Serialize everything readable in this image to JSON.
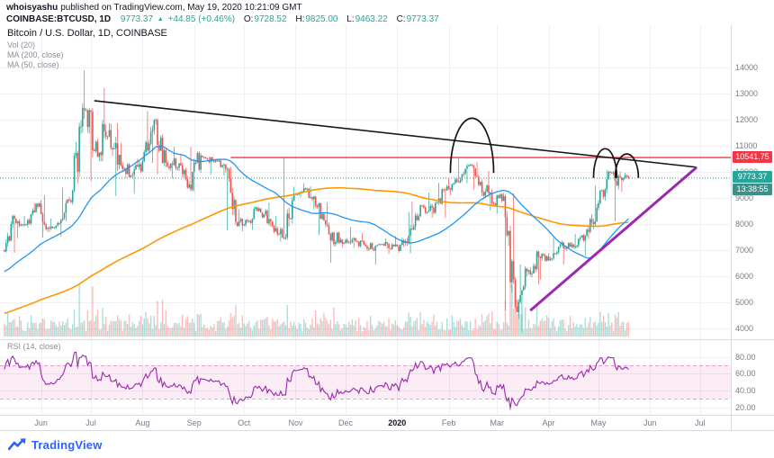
{
  "header": {
    "author": "whoisyashu",
    "published": "published on TradingView.com, May 19, 2020 10:21:09 GMT",
    "symbol": "COINBASE:BTCUSD, 1D",
    "price": "9773.37",
    "change_arrow": "▲",
    "change": "+44.85 (+0.46%)",
    "o_label": "O:",
    "o": "9728.52",
    "h_label": "H:",
    "h": "9825.00",
    "l_label": "L:",
    "l": "9463.22",
    "c_label": "C:",
    "c": "9773.37"
  },
  "legend": {
    "title": "Bitcoin / U.S. Dollar, 1D, COINBASE",
    "vol": "Vol (20)",
    "ma200": "MA (200, close)",
    "ma50": "MA (50, close)"
  },
  "rsi_legend": {
    "label": "RSI (14, close)"
  },
  "axis": {
    "price_values": [
      14000,
      13000,
      12000,
      11000,
      10000,
      9000,
      8000,
      7000,
      6000,
      5000,
      4000
    ],
    "rsi_ticks": [
      {
        "label": "80.00",
        "value": 80
      },
      {
        "label": "60.00",
        "value": 60
      },
      {
        "label": "40.00",
        "value": 40
      },
      {
        "label": "20.00",
        "value": 20
      }
    ],
    "red_label": "10541.75",
    "last_label": "9773.37",
    "countdown": "13:38:55",
    "months": [
      {
        "label": "Jun",
        "day": 22
      },
      {
        "label": "Jul",
        "day": 52
      },
      {
        "label": "Aug",
        "day": 83
      },
      {
        "label": "Sep",
        "day": 114
      },
      {
        "label": "Oct",
        "day": 144
      },
      {
        "label": "Nov",
        "day": 175
      },
      {
        "label": "Dec",
        "day": 205
      },
      {
        "label": "2020",
        "day": 236,
        "bold": true
      },
      {
        "label": "Feb",
        "day": 267
      },
      {
        "label": "Mar",
        "day": 296
      },
      {
        "label": "Apr",
        "day": 327
      },
      {
        "label": "May",
        "day": 357
      },
      {
        "label": "Jun",
        "day": 388
      },
      {
        "label": "Jul",
        "day": 418
      }
    ]
  },
  "footer": {
    "brand": "TradingView"
  },
  "colors": {
    "up": "#26a69a",
    "down": "#ef5350",
    "vol_up": "rgba(38,166,154,0.38)",
    "vol_down": "rgba(239,83,80,0.38)",
    "ma50": "#2196f3",
    "ma200": "#ff9800",
    "red_line": "#f23645",
    "trend_black": "#151515",
    "trend_purple": "#9c27b0",
    "annotation": "#151515",
    "rsi": "#9c27b0",
    "band_fill": "rgba(211,66,156,0.10)",
    "band_edge": "rgba(211,66,156,0.50)",
    "grid": "#eef0f4",
    "separator": "#d9dbe0",
    "axis_text": "#787b86",
    "last_box": "#26a69a",
    "countdown_box": "#3d8f87",
    "brand_blue": "#2962ff"
  },
  "chart_data": {
    "type": "candlestick",
    "symbol": "COINBASE:BTCUSD",
    "interval": "1D",
    "title": "Bitcoin / U.S. Dollar, 1D, COINBASE",
    "start_date": "2019-05-10",
    "total_days": 437,
    "plotted_days": 376,
    "ylim": [
      3650,
      15200
    ],
    "open_start": 7000,
    "weekly_hlc": [
      [
        8350,
        6900,
        8200
      ],
      [
        8300,
        7450,
        7980
      ],
      [
        8800,
        7850,
        8660
      ],
      [
        9090,
        7480,
        7820
      ],
      [
        8200,
        7520,
        8150
      ],
      [
        9390,
        8100,
        9270
      ],
      [
        13880,
        9210,
        12360
      ],
      [
        12440,
        9640,
        11150
      ],
      [
        13200,
        10400,
        11350
      ],
      [
        11850,
        9070,
        10650
      ],
      [
        11100,
        9750,
        9850
      ],
      [
        10500,
        9150,
        10400
      ],
      [
        12320,
        10330,
        11980
      ],
      [
        12050,
        9900,
        10350
      ],
      [
        10950,
        9750,
        10150
      ],
      [
        10650,
        9350,
        9510
      ],
      [
        10950,
        9250,
        10620
      ],
      [
        10580,
        9880,
        10410
      ],
      [
        10450,
        9850,
        10280
      ],
      [
        10180,
        7750,
        8060
      ],
      [
        8540,
        7710,
        8090
      ],
      [
        8660,
        7780,
        8590
      ],
      [
        8820,
        7890,
        8100
      ],
      [
        8300,
        7330,
        7470
      ],
      [
        10540,
        7390,
        9150
      ],
      [
        9560,
        9010,
        9320
      ],
      [
        9440,
        8550,
        8650
      ],
      [
        8820,
        7570,
        7600
      ],
      [
        7700,
        6515,
        7400
      ],
      [
        7880,
        7090,
        7400
      ],
      [
        7650,
        7080,
        7210
      ],
      [
        7290,
        6435,
        7150
      ],
      [
        7440,
        7040,
        7250
      ],
      [
        7530,
        6850,
        6960
      ],
      [
        8460,
        6880,
        7820
      ],
      [
        8850,
        7750,
        8700
      ],
      [
        9190,
        8240,
        8430
      ],
      [
        9570,
        8220,
        9290
      ],
      [
        9770,
        9100,
        9620
      ],
      [
        10500,
        9560,
        10240
      ],
      [
        10370,
        9320,
        9610
      ],
      [
        10020,
        8520,
        8790
      ],
      [
        9190,
        8410,
        9060
      ],
      [
        9170,
        4680,
        4840
      ],
      [
        6450,
        3850,
        6180
      ],
      [
        6980,
        5680,
        6740
      ],
      [
        6880,
        5870,
        6660
      ],
      [
        7470,
        6570,
        7290
      ],
      [
        7300,
        6450,
        7100
      ],
      [
        7620,
        6770,
        7550
      ],
      [
        9470,
        7430,
        8620
      ],
      [
        10070,
        8520,
        10000
      ],
      [
        10030,
        8100,
        9790
      ],
      [
        9950,
        9230,
        9773.37
      ]
    ],
    "last_week_days": 5,
    "red_line": {
      "price": 10541.75,
      "from_day": 136
    },
    "last_price": 9773.37,
    "moving_averages": [
      {
        "period": 200,
        "color_key": "ma200"
      },
      {
        "period": 50,
        "color_key": "ma50"
      }
    ],
    "volume_ma_period": 20,
    "trendlines": [
      {
        "name": "descending-resistance",
        "points": [
          [
            54,
            12720
          ],
          [
            416,
            10170
          ]
        ],
        "color": "trend_black",
        "width": 1.6
      },
      {
        "name": "ascending-support",
        "points": [
          [
            316,
            4680
          ],
          [
            416,
            10170
          ]
        ],
        "color": "trend_purple",
        "width": 3
      }
    ],
    "arcs": [
      {
        "name": "feb-top-arc",
        "center_day": 281,
        "half_width_days": 13,
        "base_price": 9950,
        "top_price": 12050
      },
      {
        "name": "may-top-arc-1",
        "center_day": 361,
        "half_width_days": 7,
        "base_price": 9760,
        "top_price": 10880
      },
      {
        "name": "may-top-arc-2",
        "center_day": 374,
        "half_width_days": 7,
        "base_price": 9760,
        "top_price": 10680
      }
    ],
    "rsi": {
      "period": 14,
      "band": [
        30,
        70
      ],
      "ticks": [
        80,
        60,
        40,
        20
      ]
    }
  }
}
